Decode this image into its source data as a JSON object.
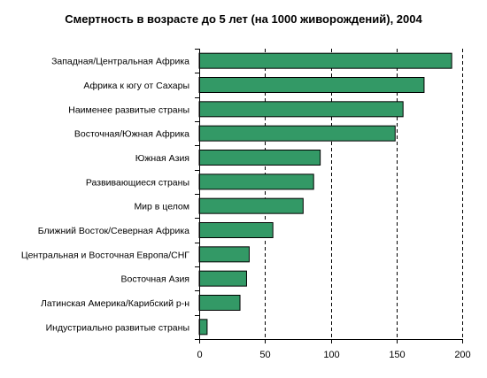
{
  "chart_data": {
    "type": "bar",
    "orientation": "horizontal",
    "title": "Смертность в возрасте до 5 лет (на 1000 живорождений), 2004",
    "categories": [
      "Западная/Центральная Африка",
      "Африка к югу от Сахары",
      "Наименее развитые страны",
      "Восточная/Южная Африка",
      "Южная Азия",
      "Развивающиеся страны",
      "Мир в целом",
      "Ближний Восток/Северная Африка",
      "Центральная и Восточная Европа/СНГ",
      "Восточная Азия",
      "Латинская Америка/Карибский р-н",
      "Индустриально развитые страны"
    ],
    "values": [
      192,
      171,
      155,
      149,
      92,
      87,
      79,
      56,
      38,
      36,
      31,
      6
    ],
    "xlim": [
      0,
      200
    ],
    "xticks": [
      0,
      50,
      100,
      150,
      200
    ],
    "grid": "vertical dashed",
    "colors": {
      "bar": "#339966",
      "bar_edge": "#000000",
      "grid": "#000000"
    }
  }
}
